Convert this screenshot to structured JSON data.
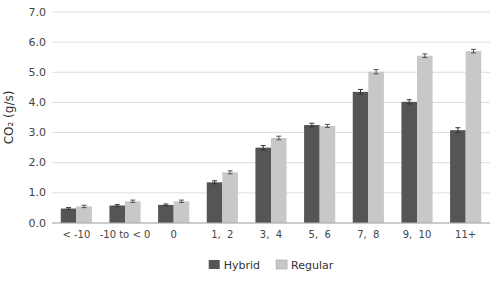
{
  "chart_data": {
    "type": "bar",
    "y_label": "CO₂ (g/s)",
    "categories": [
      "< -10",
      "-10 to < 0",
      "0",
      "1,  2",
      "3,  4",
      "5,  6",
      "7,  8",
      "9,  10",
      "11+"
    ],
    "series": [
      {
        "name": "Hybrid",
        "color": "#555555",
        "values": [
          0.48,
          0.58,
          0.6,
          1.35,
          2.5,
          3.25,
          4.35,
          4.02,
          3.08
        ],
        "errors": [
          0.03,
          0.03,
          0.03,
          0.05,
          0.07,
          0.06,
          0.08,
          0.07,
          0.08
        ]
      },
      {
        "name": "Regular",
        "color": "#c8c8c8",
        "values": [
          0.55,
          0.72,
          0.72,
          1.68,
          2.82,
          3.22,
          5.02,
          5.55,
          5.7
        ],
        "errors": [
          0.04,
          0.04,
          0.04,
          0.05,
          0.06,
          0.05,
          0.07,
          0.06,
          0.06
        ]
      }
    ],
    "ylim": [
      0,
      7
    ],
    "yticks": [
      {
        "value": 0,
        "label": "0.0"
      },
      {
        "value": 1,
        "label": "1.0"
      },
      {
        "value": 2,
        "label": "2.0"
      },
      {
        "value": 3,
        "label": "3.0"
      },
      {
        "value": 4,
        "label": "4.0"
      },
      {
        "value": 5,
        "label": "5.0"
      },
      {
        "value": 6,
        "label": "6.0"
      },
      {
        "value": 7,
        "label": "7.0"
      }
    ],
    "grid": true,
    "legend": "bottom"
  }
}
